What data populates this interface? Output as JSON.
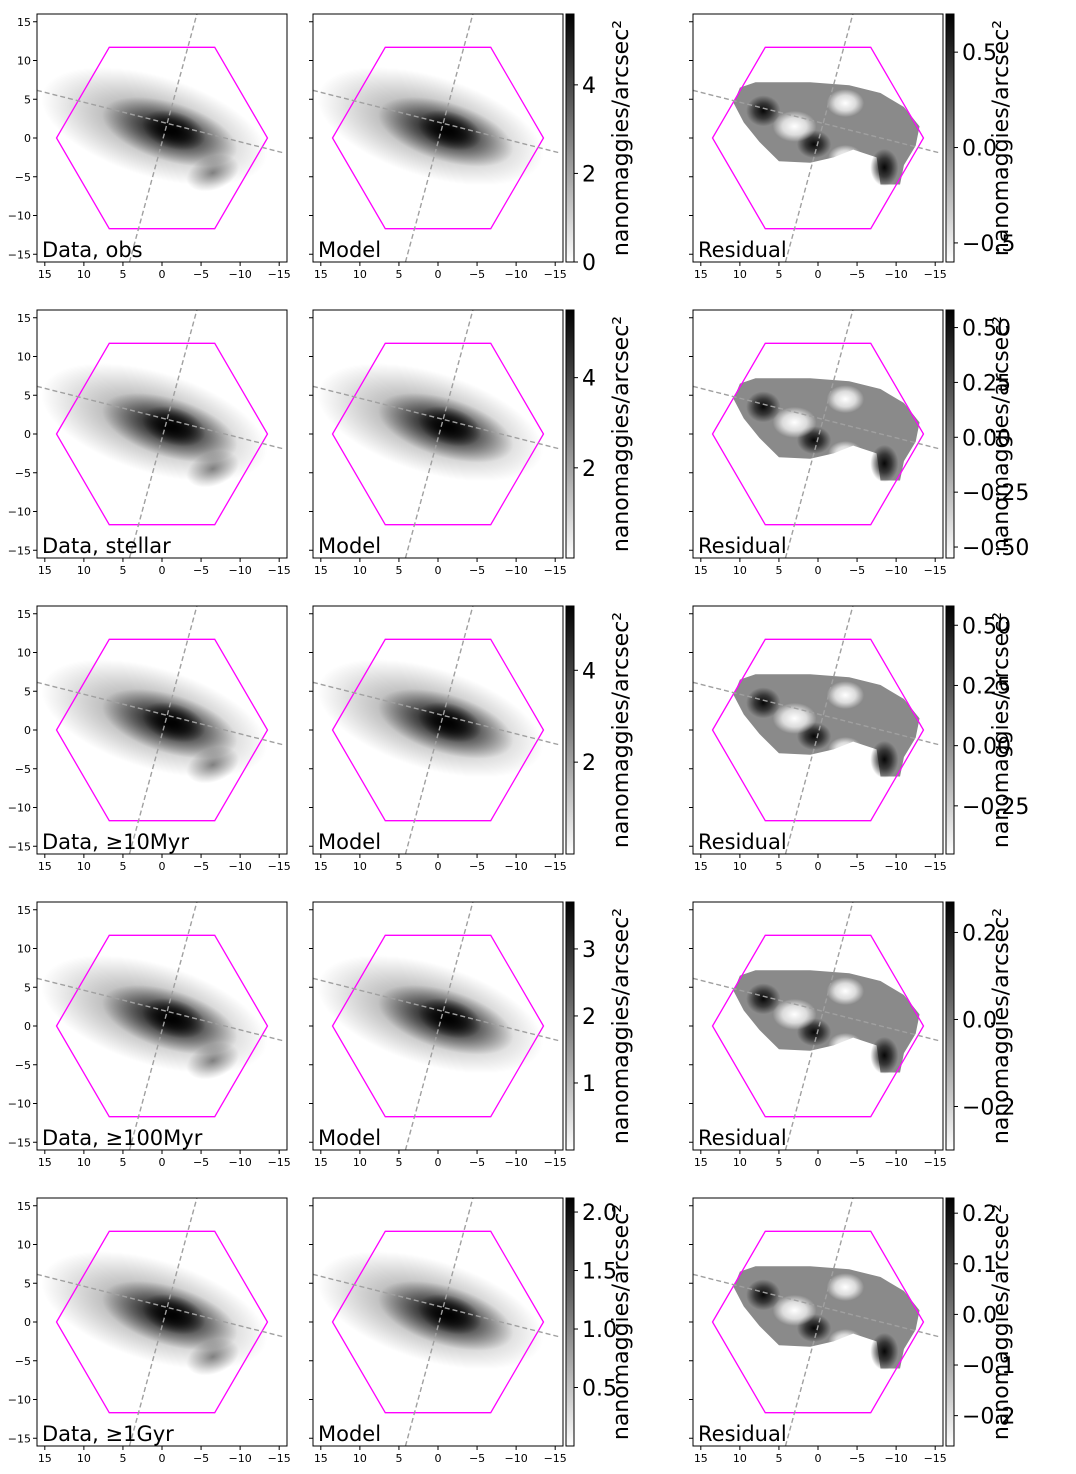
{
  "figure": {
    "hexagon_color": "#ff00ff",
    "axis_line_color": "#a0a0a0",
    "colormap": [
      "#ffffff",
      "#000000"
    ]
  },
  "chart_data": [
    {
      "type": "heatmap",
      "row_label": "Data, obs",
      "xlim": [
        16,
        -16
      ],
      "ylim": [
        -16,
        16
      ],
      "x_ticks": [
        15,
        10,
        5,
        0,
        -5,
        -10,
        -15
      ],
      "x_tick_labels": [
        "15",
        "10",
        "5",
        "0",
        "−5",
        "−10",
        "−15"
      ],
      "y_ticks": [
        15,
        10,
        5,
        0,
        -5,
        -10,
        -15
      ],
      "y_tick_labels": [
        "15",
        "10",
        "5",
        "0",
        "−5",
        "−10",
        "−15"
      ],
      "panels": [
        "Data, obs",
        "Model",
        "Residual"
      ],
      "model_colorbar": {
        "label": "nanomaggies/arcsec²",
        "min": 0,
        "max": 5.6,
        "ticks": [
          0,
          2,
          4
        ],
        "tick_labels": [
          "0",
          "2",
          "4"
        ]
      },
      "residual_colorbar": {
        "label": "nanomaggies/arcsec²",
        "min": -0.6,
        "max": 0.7,
        "ticks": [
          -0.5,
          0.0,
          0.5
        ],
        "tick_labels": [
          "−0.5",
          "0.0",
          "0.5"
        ]
      }
    },
    {
      "type": "heatmap",
      "row_label": "Data, stellar",
      "xlim": [
        16,
        -16
      ],
      "ylim": [
        -16,
        16
      ],
      "x_ticks": [
        15,
        10,
        5,
        0,
        -5,
        -10,
        -15
      ],
      "x_tick_labels": [
        "15",
        "10",
        "5",
        "0",
        "−5",
        "−10",
        "−15"
      ],
      "y_ticks": [
        15,
        10,
        5,
        0,
        -5,
        -10,
        -15
      ],
      "y_tick_labels": [
        "15",
        "10",
        "5",
        "0",
        "−5",
        "−10",
        "−15"
      ],
      "panels": [
        "Data, stellar",
        "Model",
        "Residual"
      ],
      "model_colorbar": {
        "label": "nanomaggies/arcsec²",
        "min": 0,
        "max": 5.5,
        "ticks": [
          2,
          4
        ],
        "tick_labels": [
          "2",
          "4"
        ]
      },
      "residual_colorbar": {
        "label": "nanomaggies/arcsec²",
        "min": -0.55,
        "max": 0.58,
        "ticks": [
          -0.5,
          -0.25,
          0.0,
          0.25,
          0.5
        ],
        "tick_labels": [
          "−0.50",
          "−0.25",
          "0.00",
          "0.25",
          "0.50"
        ]
      }
    },
    {
      "type": "heatmap",
      "row_label": "Data, ≥10Myr",
      "xlim": [
        16,
        -16
      ],
      "ylim": [
        -16,
        16
      ],
      "x_ticks": [
        15,
        10,
        5,
        0,
        -5,
        -10,
        -15
      ],
      "x_tick_labels": [
        "15",
        "10",
        "5",
        "0",
        "−5",
        "−10",
        "−15"
      ],
      "y_ticks": [
        15,
        10,
        5,
        0,
        -5,
        -10,
        -15
      ],
      "y_tick_labels": [
        "15",
        "10",
        "5",
        "0",
        "−5",
        "−10",
        "−15"
      ],
      "panels": [
        "Data, ≥10Myr",
        "Model",
        "Residual"
      ],
      "model_colorbar": {
        "label": "nanomaggies/arcsec²",
        "min": 0,
        "max": 5.4,
        "ticks": [
          2,
          4
        ],
        "tick_labels": [
          "2",
          "4"
        ]
      },
      "residual_colorbar": {
        "label": "nanomaggies/arcsec²",
        "min": -0.45,
        "max": 0.58,
        "ticks": [
          -0.25,
          0.0,
          0.25,
          0.5
        ],
        "tick_labels": [
          "−0.25",
          "0.00",
          "0.25",
          "0.50"
        ]
      }
    },
    {
      "type": "heatmap",
      "row_label": "Data, ≥100Myr",
      "xlim": [
        16,
        -16
      ],
      "ylim": [
        -16,
        16
      ],
      "x_ticks": [
        15,
        10,
        5,
        0,
        -5,
        -10,
        -15
      ],
      "x_tick_labels": [
        "15",
        "10",
        "5",
        "0",
        "−5",
        "−10",
        "−15"
      ],
      "y_ticks": [
        15,
        10,
        5,
        0,
        -5,
        -10,
        -15
      ],
      "y_tick_labels": [
        "15",
        "10",
        "5",
        "0",
        "−5",
        "−10",
        "−15"
      ],
      "panels": [
        "Data, ≥100Myr",
        "Model",
        "Residual"
      ],
      "model_colorbar": {
        "label": "nanomaggies/arcsec²",
        "min": 0,
        "max": 3.7,
        "ticks": [
          1,
          2,
          3
        ],
        "tick_labels": [
          "1",
          "2",
          "3"
        ]
      },
      "residual_colorbar": {
        "label": "nanomaggies/arcsec²",
        "min": -0.3,
        "max": 0.27,
        "ticks": [
          -0.2,
          0.0,
          0.2
        ],
        "tick_labels": [
          "−0.2",
          "0.0",
          "0.2"
        ]
      }
    },
    {
      "type": "heatmap",
      "row_label": "Data, ≥1Gyr",
      "xlim": [
        16,
        -16
      ],
      "ylim": [
        -16,
        16
      ],
      "x_ticks": [
        15,
        10,
        5,
        0,
        -5,
        -10,
        -15
      ],
      "x_tick_labels": [
        "15",
        "10",
        "5",
        "0",
        "−5",
        "−10",
        "−15"
      ],
      "y_ticks": [
        15,
        10,
        5,
        0,
        -5,
        -10,
        -15
      ],
      "y_tick_labels": [
        "15",
        "10",
        "5",
        "0",
        "−5",
        "−10",
        "−15"
      ],
      "panels": [
        "Data, ≥1Gyr",
        "Model",
        "Residual"
      ],
      "model_colorbar": {
        "label": "nanomaggies/arcsec²",
        "min": 0,
        "max": 2.12,
        "ticks": [
          0.5,
          1.0,
          1.5,
          2.0
        ],
        "tick_labels": [
          "0.5",
          "1.0",
          "1.5",
          "2.0"
        ]
      },
      "residual_colorbar": {
        "label": "nanomaggies/arcsec²",
        "min": -0.26,
        "max": 0.23,
        "ticks": [
          -0.2,
          -0.1,
          0.0,
          0.1,
          0.2
        ],
        "tick_labels": [
          "−0.2",
          "−0.1",
          "0.0",
          "0.1",
          "0.2"
        ]
      }
    }
  ]
}
